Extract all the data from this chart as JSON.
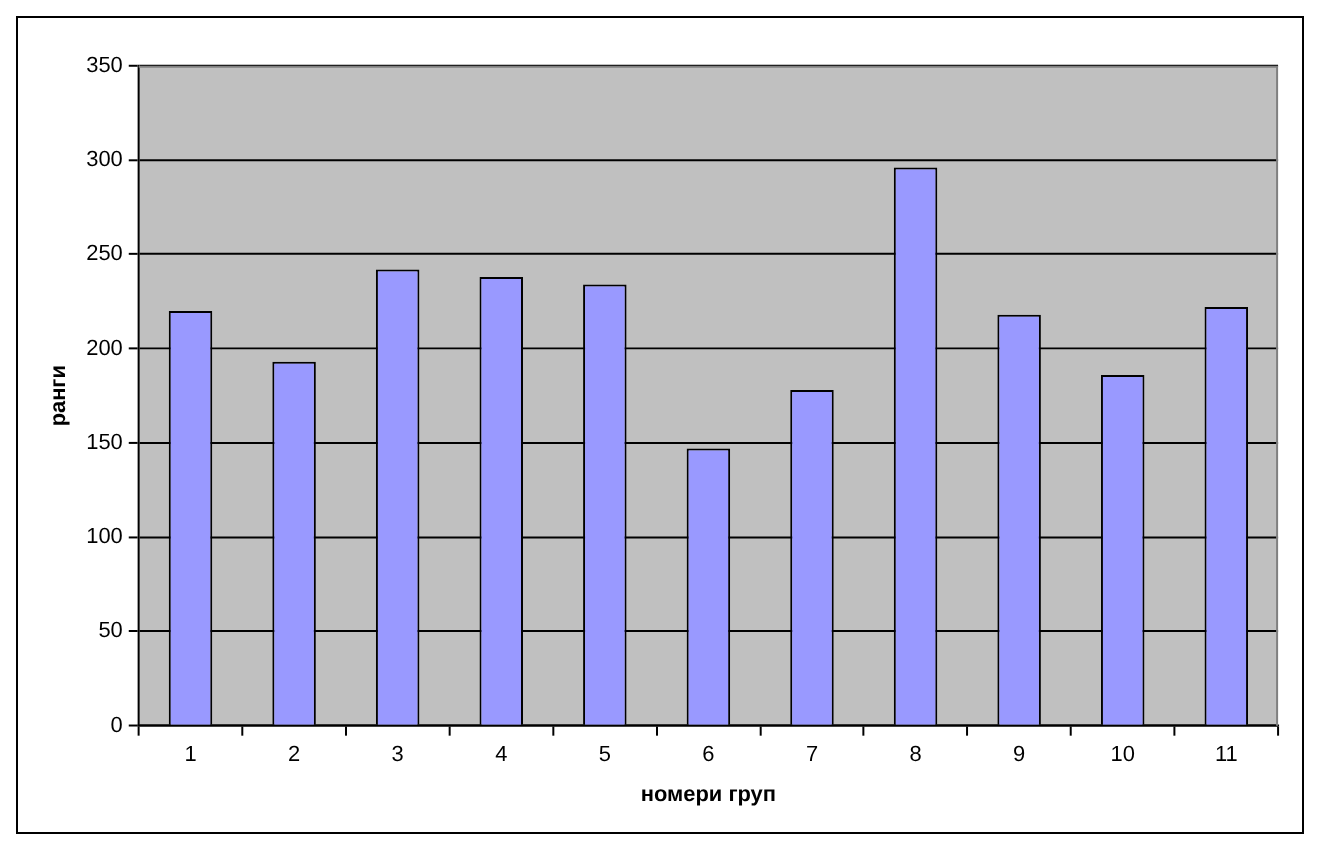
{
  "chart_data": {
    "type": "bar",
    "xlabel": "номери груп",
    "ylabel": "ранги",
    "categories": [
      "1",
      "2",
      "3",
      "4",
      "5",
      "6",
      "7",
      "8",
      "9",
      "10",
      "11"
    ],
    "values": [
      220,
      193,
      242,
      238,
      234,
      147,
      178,
      296,
      218,
      186,
      222
    ],
    "color": "#9999ff",
    "ylim": [
      0,
      350
    ],
    "yticks": [
      0,
      50,
      100,
      150,
      200,
      250,
      300,
      350
    ],
    "grid": "y"
  }
}
